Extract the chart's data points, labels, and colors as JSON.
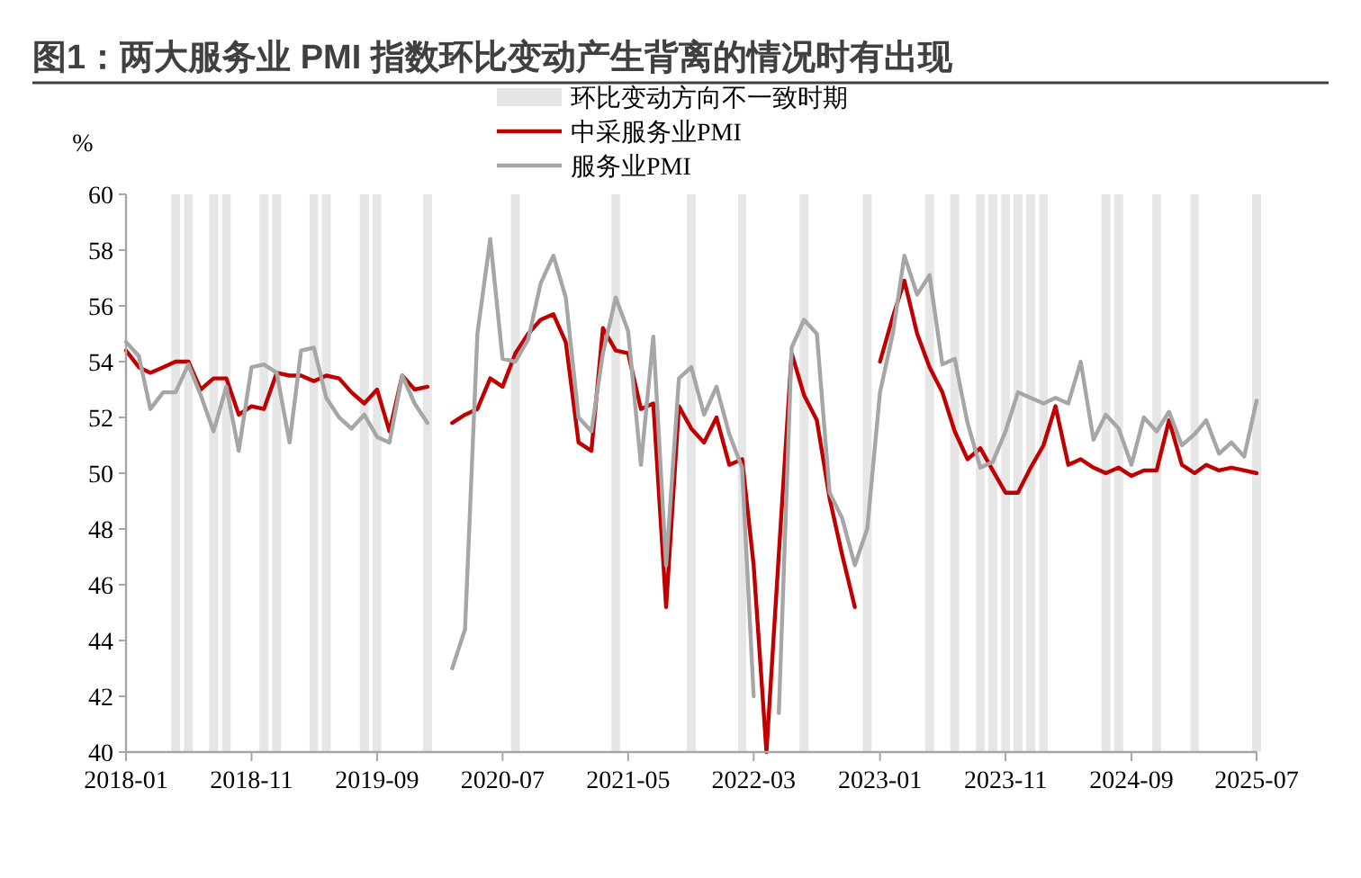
{
  "chart_data": {
    "type": "line",
    "title": "图1：两大服务业 PMI 指数环比变动产生背离的情况时有出现",
    "ylabel": "%",
    "xlim": [
      "2018-01",
      "2025-07"
    ],
    "xticks": [
      "2018-01",
      "2018-11",
      "2019-09",
      "2020-07",
      "2021-05",
      "2022-03",
      "2023-01",
      "2023-11",
      "2024-09",
      "2025-07"
    ],
    "ylim": [
      40,
      60
    ],
    "yticks": [
      40,
      42,
      44,
      46,
      48,
      50,
      52,
      54,
      56,
      58,
      60
    ],
    "legend": "top",
    "x": [
      "2018-01",
      "2018-02",
      "2018-03",
      "2018-04",
      "2018-05",
      "2018-06",
      "2018-07",
      "2018-08",
      "2018-09",
      "2018-10",
      "2018-11",
      "2018-12",
      "2019-01",
      "2019-02",
      "2019-03",
      "2019-04",
      "2019-05",
      "2019-06",
      "2019-07",
      "2019-08",
      "2019-09",
      "2019-10",
      "2019-11",
      "2019-12",
      "2020-01",
      "2020-02",
      "2020-03",
      "2020-04",
      "2020-05",
      "2020-06",
      "2020-07",
      "2020-08",
      "2020-09",
      "2020-10",
      "2020-11",
      "2020-12",
      "2021-01",
      "2021-02",
      "2021-03",
      "2021-04",
      "2021-05",
      "2021-06",
      "2021-07",
      "2021-08",
      "2021-09",
      "2021-10",
      "2021-11",
      "2021-12",
      "2022-01",
      "2022-02",
      "2022-03",
      "2022-04",
      "2022-05",
      "2022-06",
      "2022-07",
      "2022-08",
      "2022-09",
      "2022-10",
      "2022-11",
      "2022-12",
      "2023-01",
      "2023-02",
      "2023-03",
      "2023-04",
      "2023-05",
      "2023-06",
      "2023-07",
      "2023-08",
      "2023-09",
      "2023-10",
      "2023-11",
      "2023-12",
      "2024-01",
      "2024-02",
      "2024-03",
      "2024-04",
      "2024-05",
      "2024-06",
      "2024-07",
      "2024-08",
      "2024-09",
      "2024-10",
      "2024-11",
      "2024-12",
      "2025-01",
      "2025-02",
      "2025-03",
      "2025-04",
      "2025-05",
      "2025-06",
      "2025-07"
    ],
    "series": [
      {
        "name": "中采服务业PMI",
        "color": "#c00000",
        "values": [
          54.4,
          53.8,
          53.6,
          53.8,
          54.0,
          54.0,
          53.0,
          53.4,
          53.4,
          52.1,
          52.4,
          52.3,
          53.6,
          53.5,
          53.5,
          53.3,
          53.5,
          53.4,
          52.9,
          52.5,
          53.0,
          51.5,
          53.5,
          53.0,
          53.1,
          null,
          51.8,
          52.1,
          52.3,
          53.4,
          53.1,
          54.3,
          55.0,
          55.5,
          55.7,
          54.7,
          51.1,
          50.8,
          55.2,
          54.4,
          54.3,
          52.3,
          52.5,
          45.2,
          52.4,
          51.6,
          51.1,
          52.0,
          50.3,
          50.5,
          46.7,
          40.0,
          47.1,
          54.3,
          52.8,
          51.9,
          49.1,
          47.1,
          45.2,
          null,
          54.0,
          55.6,
          56.9,
          55.0,
          53.8,
          52.9,
          51.5,
          50.5,
          50.9,
          50.1,
          49.3,
          49.3,
          50.2,
          51.0,
          52.4,
          50.3,
          50.5,
          50.2,
          50.0,
          50.2,
          49.9,
          50.1,
          50.1,
          51.9,
          50.3,
          50.0,
          50.3,
          50.1,
          50.2,
          50.1,
          50.0
        ]
      },
      {
        "name": "服务业PMI",
        "color": "#a6a6a6",
        "values": [
          54.7,
          54.2,
          52.3,
          52.9,
          52.9,
          53.9,
          52.8,
          51.5,
          53.1,
          50.8,
          53.8,
          53.9,
          53.6,
          51.1,
          54.4,
          54.5,
          52.7,
          52.0,
          51.6,
          52.1,
          51.3,
          51.1,
          53.5,
          52.5,
          51.8,
          null,
          43.0,
          44.4,
          55.0,
          58.4,
          54.1,
          54.0,
          54.8,
          56.8,
          57.8,
          56.3,
          52.0,
          51.5,
          54.3,
          56.3,
          55.1,
          50.3,
          54.9,
          46.7,
          53.4,
          53.8,
          52.1,
          53.1,
          51.4,
          50.2,
          42.0,
          null,
          41.4,
          54.5,
          55.5,
          55.0,
          49.3,
          48.4,
          46.7,
          48.0,
          52.9,
          55.0,
          57.8,
          56.4,
          57.1,
          53.9,
          54.1,
          51.8,
          50.2,
          50.4,
          51.5,
          52.9,
          52.7,
          52.5,
          52.7,
          52.5,
          54.0,
          51.2,
          52.1,
          51.6,
          50.3,
          52.0,
          51.5,
          52.2,
          51.0,
          51.4,
          51.9,
          50.7,
          51.1,
          50.6,
          52.6
        ]
      }
    ],
    "bands": [
      {
        "axis": "x",
        "from": "2018-05",
        "to": "2018-05",
        "label": "环比变动方向不一致时期",
        "color": "#e6e6e6"
      },
      {
        "axis": "x",
        "from": "2018-06",
        "to": "2018-06",
        "color": "#e6e6e6"
      },
      {
        "axis": "x",
        "from": "2018-08",
        "to": "2018-08",
        "color": "#e6e6e6"
      },
      {
        "axis": "x",
        "from": "2018-09",
        "to": "2018-09",
        "color": "#e6e6e6"
      },
      {
        "axis": "x",
        "from": "2018-12",
        "to": "2018-12",
        "color": "#e6e6e6"
      },
      {
        "axis": "x",
        "from": "2019-01",
        "to": "2019-01",
        "color": "#e6e6e6"
      },
      {
        "axis": "x",
        "from": "2019-04",
        "to": "2019-04",
        "color": "#e6e6e6"
      },
      {
        "axis": "x",
        "from": "2019-05",
        "to": "2019-05",
        "color": "#e6e6e6"
      },
      {
        "axis": "x",
        "from": "2019-08",
        "to": "2019-08",
        "color": "#e6e6e6"
      },
      {
        "axis": "x",
        "from": "2019-09",
        "to": "2019-09",
        "color": "#e6e6e6"
      },
      {
        "axis": "x",
        "from": "2020-01",
        "to": "2020-01",
        "color": "#e6e6e6"
      },
      {
        "axis": "x",
        "from": "2020-08",
        "to": "2020-08",
        "color": "#e6e6e6"
      },
      {
        "axis": "x",
        "from": "2021-04",
        "to": "2021-04",
        "color": "#e6e6e6"
      },
      {
        "axis": "x",
        "from": "2021-10",
        "to": "2021-10",
        "color": "#e6e6e6"
      },
      {
        "axis": "x",
        "from": "2022-02",
        "to": "2022-02",
        "color": "#e6e6e6"
      },
      {
        "axis": "x",
        "from": "2022-07",
        "to": "2022-07",
        "color": "#e6e6e6"
      },
      {
        "axis": "x",
        "from": "2022-12",
        "to": "2022-12",
        "color": "#e6e6e6"
      },
      {
        "axis": "x",
        "from": "2023-05",
        "to": "2023-05",
        "color": "#e6e6e6"
      },
      {
        "axis": "x",
        "from": "2023-07",
        "to": "2023-07",
        "color": "#e6e6e6"
      },
      {
        "axis": "x",
        "from": "2023-09",
        "to": "2023-09",
        "color": "#e6e6e6"
      },
      {
        "axis": "x",
        "from": "2023-10",
        "to": "2023-10",
        "color": "#e6e6e6"
      },
      {
        "axis": "x",
        "from": "2023-11",
        "to": "2023-11",
        "color": "#e6e6e6"
      },
      {
        "axis": "x",
        "from": "2023-12",
        "to": "2023-12",
        "color": "#e6e6e6"
      },
      {
        "axis": "x",
        "from": "2024-01",
        "to": "2024-01",
        "color": "#e6e6e6"
      },
      {
        "axis": "x",
        "from": "2024-02",
        "to": "2024-02",
        "color": "#e6e6e6"
      },
      {
        "axis": "x",
        "from": "2024-07",
        "to": "2024-07",
        "color": "#e6e6e6"
      },
      {
        "axis": "x",
        "from": "2024-08",
        "to": "2024-08",
        "color": "#e6e6e6"
      },
      {
        "axis": "x",
        "from": "2024-11",
        "to": "2024-11",
        "color": "#e6e6e6"
      },
      {
        "axis": "x",
        "from": "2025-02",
        "to": "2025-02",
        "color": "#e6e6e6"
      },
      {
        "axis": "x",
        "from": "2025-07",
        "to": "2025-07",
        "color": "#e6e6e6"
      }
    ]
  }
}
